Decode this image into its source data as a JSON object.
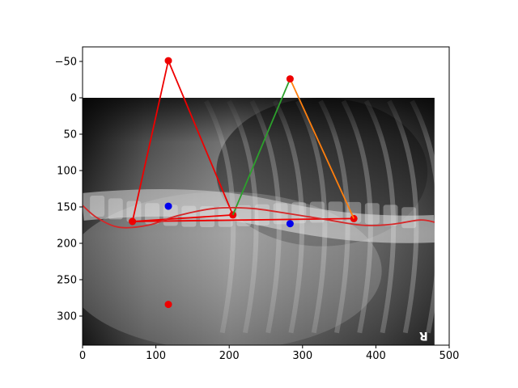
{
  "chart_data": {
    "type": "scatter",
    "background": "grayscale lateral radiograph",
    "xlim": [
      0,
      500
    ],
    "ylim": [
      340,
      -70
    ],
    "y_inverted": true,
    "x_ticks": [
      0,
      100,
      200,
      300,
      400,
      500
    ],
    "y_ticks": [
      -50,
      0,
      50,
      100,
      150,
      200,
      250,
      300
    ],
    "x_tick_labels": [
      "0",
      "100",
      "200",
      "300",
      "400",
      "500"
    ],
    "y_tick_labels": [
      "−50",
      "0",
      "50",
      "100",
      "150",
      "200",
      "250",
      "300"
    ],
    "image_extent": {
      "x": [
        0,
        480
      ],
      "y": [
        0,
        340
      ]
    },
    "series": [
      {
        "color": "#ee0000",
        "style": "line+markers",
        "points": [
          [
            68,
            170
          ],
          [
            117,
            -51
          ],
          [
            205,
            161
          ],
          [
            68,
            170
          ],
          [
            370,
            166
          ]
        ]
      },
      {
        "color": "#2ca02c",
        "style": "line",
        "points": [
          [
            205,
            161
          ],
          [
            283,
            -26
          ]
        ]
      },
      {
        "color": "#ff7f0e",
        "style": "line",
        "points": [
          [
            283,
            -26
          ],
          [
            370,
            166
          ]
        ]
      },
      {
        "color": "#ee0000",
        "style": "markers",
        "points": [
          [
            283,
            -26
          ],
          [
            117,
            284
          ]
        ]
      },
      {
        "color": "#0000ee",
        "style": "markers",
        "points": [
          [
            117,
            149
          ],
          [
            283,
            173
          ]
        ]
      },
      {
        "color": "#d62728",
        "style": "smooth curve",
        "points": [
          [
            0,
            148
          ],
          [
            20,
            165
          ],
          [
            50,
            178
          ],
          [
            90,
            175
          ],
          [
            130,
            162
          ],
          [
            180,
            152
          ],
          [
            230,
            152
          ],
          [
            280,
            159
          ],
          [
            330,
            167
          ],
          [
            380,
            175
          ],
          [
            420,
            174
          ],
          [
            460,
            168
          ],
          [
            480,
            171
          ]
        ]
      }
    ],
    "colors": {
      "red": "#ee0000",
      "green": "#2ca02c",
      "orange": "#ff7f0e",
      "blue": "#0000ee",
      "curve": "#d62728"
    }
  }
}
